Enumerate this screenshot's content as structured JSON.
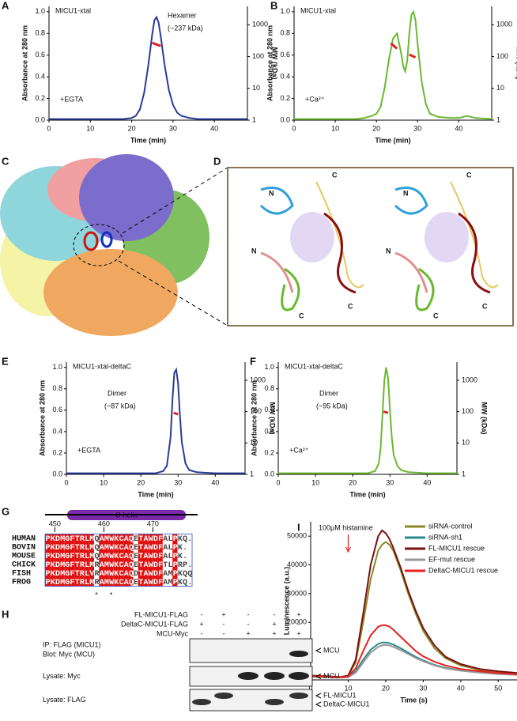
{
  "panel_labels": [
    "A",
    "B",
    "C",
    "D",
    "E",
    "F",
    "G",
    "H",
    "I"
  ],
  "chart_data": [
    {
      "type": "line",
      "title": "MICU1-xtal",
      "annotations": [
        "Hexamer",
        "(~237 kDa)",
        "+EGTA"
      ],
      "x_label": "Time (min)",
      "y_label": "Absorbance at 280 nm",
      "y2_label": "MW (kDa)",
      "xlim": [
        0,
        48
      ],
      "xticks": [
        0,
        10,
        20,
        30,
        40
      ],
      "ylim": [
        0,
        1.05
      ],
      "yticks": [
        {
          "value": 0,
          "label": "0.0"
        },
        0.2,
        0.4,
        0.6,
        0.8,
        {
          "value": 1,
          "label": "1.0"
        }
      ],
      "y2lim": [
        1,
        3800
      ],
      "y2log": true,
      "y2ticks": [
        1,
        10,
        100,
        1000
      ],
      "series": [
        {
          "color": "#2a3a96",
          "x": [
            0,
            5,
            10,
            15,
            18,
            20,
            21,
            22,
            23,
            24,
            25,
            25.5,
            26,
            26.5,
            27,
            28,
            29,
            30,
            31,
            32,
            34,
            36,
            40,
            45,
            48
          ],
          "values": [
            0.01,
            0.01,
            0.01,
            0.01,
            0.01,
            0.02,
            0.04,
            0.1,
            0.25,
            0.5,
            0.8,
            0.92,
            0.95,
            0.9,
            0.78,
            0.5,
            0.28,
            0.14,
            0.07,
            0.04,
            0.02,
            0.01,
            0.01,
            0.01,
            0.01
          ]
        },
        {
          "color": "#e02020",
          "axis": "y2",
          "x": [
            25,
            25.5,
            26,
            26.5,
            27
          ],
          "values": [
            270,
            255,
            240,
            228,
            215
          ]
        }
      ]
    },
    {
      "type": "line",
      "title": "MICU1-xtal",
      "annotations": [
        "+Ca²⁺"
      ],
      "x_label": "Time (min)",
      "y_label": "Absorbance at 280 nm",
      "y2_label": "MW (kDa)",
      "xlim": [
        0,
        48
      ],
      "xticks": [
        0,
        10,
        20,
        30,
        40
      ],
      "ylim": [
        0,
        1.05
      ],
      "yticks": [
        {
          "value": 0,
          "label": "0.0"
        },
        0.2,
        0.4,
        0.6,
        0.8,
        {
          "value": 1,
          "label": "1.0"
        }
      ],
      "y2lim": [
        1,
        3800
      ],
      "y2log": true,
      "y2ticks": [
        1,
        10,
        100,
        1000
      ],
      "series": [
        {
          "color": "#6ab82e",
          "x": [
            0,
            10,
            15,
            17,
            18,
            19,
            20,
            21,
            22,
            23,
            24,
            25,
            26,
            26.5,
            27,
            27.5,
            28,
            28.5,
            29,
            29.5,
            30,
            31,
            32,
            33,
            35,
            38,
            40,
            42,
            44,
            48
          ],
          "values": [
            0.01,
            0.01,
            0.01,
            0.02,
            0.03,
            0.04,
            0.06,
            0.12,
            0.3,
            0.55,
            0.75,
            0.8,
            0.62,
            0.5,
            0.45,
            0.55,
            0.8,
            0.97,
            1,
            0.92,
            0.7,
            0.35,
            0.15,
            0.06,
            0.03,
            0.02,
            0.02,
            0.04,
            0.02,
            0.01
          ]
        },
        {
          "color": "#e02020",
          "axis": "y2",
          "x": [
            23.5,
            24,
            24.5,
            25
          ],
          "values": [
            260,
            230,
            200,
            180
          ]
        },
        {
          "color": "#e02020",
          "axis": "y2",
          "x": [
            28,
            28.5,
            29,
            29.5
          ],
          "values": [
            115,
            108,
            100,
            95
          ]
        }
      ]
    },
    {
      "type": "line",
      "title": "MICU1-xtal-deltaC",
      "annotations": [
        "Dimer",
        "(~87 kDa)",
        "+EGTA"
      ],
      "x_label": "Time (min)",
      "y_label": "Absorbance at 280 nm",
      "y2_label": "MW (kDa)",
      "xlim": [
        0,
        48
      ],
      "xticks": [
        0,
        10,
        20,
        30,
        40
      ],
      "ylim": [
        0,
        1.05
      ],
      "yticks": [
        {
          "value": 0,
          "label": "0.0"
        },
        0.2,
        0.4,
        0.6,
        0.8,
        {
          "value": 1,
          "label": "1.0"
        }
      ],
      "y2lim": [
        1,
        3800
      ],
      "y2log": true,
      "y2ticks": [
        1,
        10,
        100,
        1000
      ],
      "series": [
        {
          "color": "#2a3a96",
          "x": [
            0,
            10,
            20,
            24,
            26,
            27,
            28,
            28.5,
            29,
            29.5,
            30,
            30.5,
            31,
            32,
            33,
            35,
            40,
            48
          ],
          "values": [
            0.01,
            0.01,
            0.01,
            0.01,
            0.03,
            0.08,
            0.35,
            0.7,
            0.95,
            0.98,
            0.85,
            0.55,
            0.3,
            0.1,
            0.04,
            0.02,
            0.01,
            0.01
          ]
        },
        {
          "color": "#e02020",
          "axis": "y2",
          "x": [
            28.8,
            29.2,
            29.6,
            30
          ],
          "values": [
            92,
            88,
            85,
            82
          ]
        }
      ]
    },
    {
      "type": "line",
      "title": "MICU1-xtal-deltaC",
      "annotations": [
        "Dimer",
        "(~95 kDa)",
        "+Ca²⁺"
      ],
      "x_label": "Time (min)",
      "y_label": "Absorbance at 280 nm",
      "y2_label": "MW (kDa)",
      "xlim": [
        0,
        48
      ],
      "xticks": [
        0,
        10,
        20,
        30,
        40
      ],
      "ylim": [
        0,
        1.05
      ],
      "yticks": [
        {
          "value": 0,
          "label": "0.0"
        },
        0.2,
        0.4,
        0.6,
        0.8,
        {
          "value": 1,
          "label": "1.0"
        }
      ],
      "y2lim": [
        1,
        3800
      ],
      "y2log": true,
      "y2ticks": [
        1,
        10,
        100,
        1000
      ],
      "series": [
        {
          "color": "#6ab82e",
          "x": [
            0,
            10,
            20,
            24,
            26,
            27,
            27.5,
            28,
            28.5,
            29,
            29.5,
            30,
            30.5,
            31,
            32,
            33,
            35,
            40,
            48
          ],
          "values": [
            0.01,
            0.01,
            0.01,
            0.01,
            0.03,
            0.1,
            0.25,
            0.55,
            0.88,
            1,
            0.9,
            0.6,
            0.35,
            0.18,
            0.08,
            0.04,
            0.02,
            0.01,
            0.01
          ]
        },
        {
          "color": "#e02020",
          "axis": "y2",
          "x": [
            28.3,
            28.7,
            29.1,
            29.5
          ],
          "values": [
            100,
            97,
            94,
            91
          ]
        }
      ]
    },
    {
      "type": "line",
      "annotations": [
        "100µM histamine"
      ],
      "x_label": "Time (s)",
      "y_label": "Luminescence (a.u.)",
      "legend": "upper right",
      "xlim": [
        0,
        55
      ],
      "xticks": [
        0,
        10,
        20,
        30,
        40,
        50
      ],
      "ylim": [
        0,
        55000
      ],
      "yticks": [
        0,
        10000,
        20000,
        30000,
        40000,
        50000
      ],
      "x": [
        0,
        5,
        8,
        10,
        12,
        14,
        16,
        18,
        19,
        20,
        21,
        22,
        24,
        26,
        28,
        30,
        33,
        36,
        40,
        45,
        50,
        55
      ],
      "series": [
        {
          "name": "siRNA-control",
          "color": "#8a8a2a",
          "values": [
            1500,
            1200,
            1000,
            1500,
            6000,
            20000,
            35000,
            45000,
            47000,
            48000,
            47000,
            45000,
            38000,
            30000,
            23000,
            17000,
            11000,
            7500,
            5000,
            3500,
            2800,
            2200
          ]
        },
        {
          "name": "siRNA-sh1",
          "color": "#2a8a8a",
          "values": [
            1200,
            1000,
            900,
            1000,
            3000,
            7000,
            10500,
            12500,
            13000,
            13000,
            12800,
            12300,
            11000,
            9500,
            8000,
            6800,
            5200,
            4200,
            3300,
            2600,
            2100,
            1800
          ]
        },
        {
          "name": "FL-MICU1 rescue",
          "color": "#7a1010",
          "values": [
            1500,
            1200,
            1000,
            1500,
            7000,
            23000,
            40000,
            50000,
            52000,
            51000,
            49000,
            46000,
            39000,
            31000,
            24000,
            18000,
            12000,
            8000,
            5500,
            3800,
            3000,
            2400
          ]
        },
        {
          "name": "EF-mut rescue",
          "color": "#999999",
          "values": [
            1000,
            900,
            800,
            900,
            2500,
            6000,
            9500,
            11500,
            12000,
            12200,
            12000,
            11500,
            10300,
            9000,
            7600,
            6500,
            5000,
            4000,
            3200,
            2500,
            2000,
            1700
          ]
        },
        {
          "name": "DeltaC-MICU1 rescue",
          "color": "#e82020",
          "values": [
            1300,
            1100,
            900,
            1200,
            4000,
            10000,
            15500,
            18500,
            19000,
            19000,
            18500,
            17500,
            15000,
            12500,
            10000,
            8200,
            6300,
            5000,
            3800,
            3000,
            2400,
            2000
          ]
        }
      ]
    }
  ],
  "structure": {
    "labels": [
      "N",
      "C",
      "N",
      "C",
      "C"
    ]
  },
  "alignment": {
    "helix": "C-helix",
    "numbers": [
      "450",
      "460",
      "470"
    ],
    "rows": [
      {
        "species": "HUMAN",
        "sequence": "PKDMGFTRLMQAMWKCAQETAWDFALPKQ."
      },
      {
        "species": "BOVIN",
        "sequence": "PKDMGFTRLMQAMWKCAQETAWDFALPK."
      },
      {
        "species": "MOUSE",
        "sequence": "PKDMGFTRLMQAMWKCAQETAWDFALPK."
      },
      {
        "species": "CHICK",
        "sequence": "PKDMGFTRLMRAMWKCAQETAWDFTLPRP."
      },
      {
        "species": "FISH",
        "sequence": "PKDMGFTRLVRAMWKCAQDTAWDFAMPKQQ"
      },
      {
        "species": "FROG",
        "sequence": "PKDMGFTRLMRAMWKCAQETAWDFAMPKQ."
      }
    ],
    "marks": [
      "*",
      "*"
    ]
  },
  "blot": {
    "conditions": [
      {
        "label": "FL-MICU1-FLAG",
        "lanes": [
          "-",
          "+",
          "-",
          "-",
          "+"
        ]
      },
      {
        "label": "DeltaC-MICU1-FLAG",
        "lanes": [
          "+",
          "-",
          "-",
          "+",
          "-"
        ]
      },
      {
        "label": "MCU-Myc",
        "lanes": [
          "-",
          "-",
          "+",
          "+",
          "+"
        ]
      }
    ],
    "panels": [
      {
        "labels": [
          "IP: FLAG (MICU1)",
          "Blot: Myc (MCU)"
        ],
        "bands": [
          "MCU"
        ]
      },
      {
        "labels": [
          "Lysate: Myc"
        ],
        "bands": [
          "MCU"
        ]
      },
      {
        "labels": [
          "Lysate: FLAG"
        ],
        "bands": [
          "FL-MICU1",
          "DeltaC-MICU1"
        ]
      }
    ]
  }
}
